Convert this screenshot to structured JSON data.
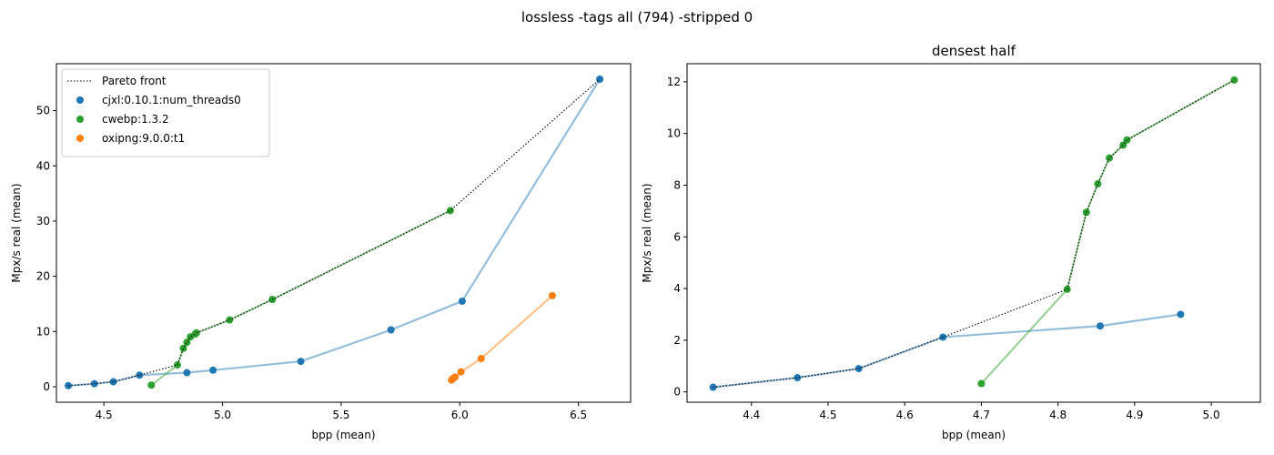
{
  "figure": {
    "suptitle": "lossless -tags all (794) -stripped 0"
  },
  "colors": {
    "cjxl": "#1f77b4",
    "cwebp": "#2ca02c",
    "oxipng": "#ff7f0e",
    "pareto": "#000000"
  },
  "chart_data": [
    {
      "type": "scatter",
      "title": "",
      "xlabel": "bpp (mean)",
      "ylabel": "Mpx/s real (mean)",
      "xlim": [
        4.3,
        6.72
      ],
      "ylim": [
        -2.8,
        58.5
      ],
      "xticks": [
        4.5,
        5.0,
        5.5,
        6.0,
        6.5
      ],
      "xtick_labels": [
        "4.5",
        "5.0",
        "5.5",
        "6.0",
        "6.5"
      ],
      "yticks": [
        0,
        10,
        20,
        30,
        40,
        50
      ],
      "ytick_labels": [
        "0",
        "10",
        "20",
        "30",
        "40",
        "50"
      ],
      "legend_position": "top-left",
      "legend": [
        "Pareto front",
        "cjxl:0.10.1:num_threads0",
        "cwebp:1.3.2",
        "oxipng:9.0.0:t1"
      ],
      "series": [
        {
          "name": "cjxl:0.10.1:num_threads0",
          "color_key": "cjxl",
          "x": [
            4.35,
            4.46,
            4.54,
            4.65,
            4.85,
            4.96,
            5.33,
            5.71,
            6.01,
            6.59
          ],
          "y": [
            0.2,
            0.55,
            0.9,
            2.1,
            2.55,
            3.0,
            4.6,
            10.3,
            15.5,
            55.7
          ]
        },
        {
          "name": "cwebp:1.3.2",
          "color_key": "cwebp",
          "x": [
            4.7,
            4.81,
            4.835,
            4.85,
            4.865,
            4.885,
            4.89,
            5.03,
            5.21,
            5.96
          ],
          "y": [
            0.3,
            3.95,
            6.95,
            8.05,
            9.05,
            9.55,
            9.75,
            12.1,
            15.8,
            31.9
          ]
        },
        {
          "name": "oxipng:9.0.0:t1",
          "color_key": "oxipng",
          "x": [
            5.965,
            5.97,
            5.975,
            5.98,
            6.005,
            6.09,
            6.39
          ],
          "y": [
            1.2,
            1.45,
            1.6,
            1.75,
            2.7,
            5.1,
            16.5
          ]
        }
      ],
      "pareto": {
        "x": [
          4.35,
          4.46,
          4.54,
          4.65,
          4.81,
          4.835,
          4.85,
          4.865,
          4.885,
          4.89,
          5.03,
          5.21,
          5.96,
          6.59
        ],
        "y": [
          0.2,
          0.55,
          0.9,
          2.1,
          3.95,
          6.95,
          8.05,
          9.05,
          9.55,
          9.75,
          12.1,
          15.8,
          31.9,
          55.7
        ]
      }
    },
    {
      "type": "scatter",
      "title": "densest half",
      "xlabel": "bpp (mean)",
      "ylabel": "Mpx/s real (mean)",
      "xlim": [
        4.316,
        5.064
      ],
      "ylim": [
        -0.4,
        12.7
      ],
      "xticks": [
        4.4,
        4.5,
        4.6,
        4.7,
        4.8,
        4.9,
        5.0
      ],
      "xtick_labels": [
        "4.4",
        "4.5",
        "4.6",
        "4.7",
        "4.8",
        "4.9",
        "5.0"
      ],
      "yticks": [
        0,
        2,
        4,
        6,
        8,
        10,
        12
      ],
      "ytick_labels": [
        "0",
        "2",
        "4",
        "6",
        "8",
        "10",
        "12"
      ],
      "series": [
        {
          "name": "cjxl:0.10.1:num_threads0",
          "color_key": "cjxl",
          "x": [
            4.35,
            4.46,
            4.54,
            4.65,
            4.855,
            4.96
          ],
          "y": [
            0.18,
            0.55,
            0.9,
            2.12,
            2.55,
            3.0
          ]
        },
        {
          "name": "cwebp:1.3.2",
          "color_key": "cwebp",
          "x": [
            4.7,
            4.812,
            4.837,
            4.852,
            4.867,
            4.885,
            4.89,
            5.03
          ],
          "y": [
            0.32,
            3.97,
            6.95,
            8.05,
            9.05,
            9.55,
            9.75,
            12.07
          ]
        }
      ],
      "pareto": {
        "x": [
          4.35,
          4.46,
          4.54,
          4.65,
          4.812,
          4.837,
          4.852,
          4.867,
          4.885,
          4.89,
          5.03
        ],
        "y": [
          0.18,
          0.55,
          0.9,
          2.12,
          3.97,
          6.95,
          8.05,
          9.05,
          9.55,
          9.75,
          12.07
        ]
      }
    }
  ]
}
